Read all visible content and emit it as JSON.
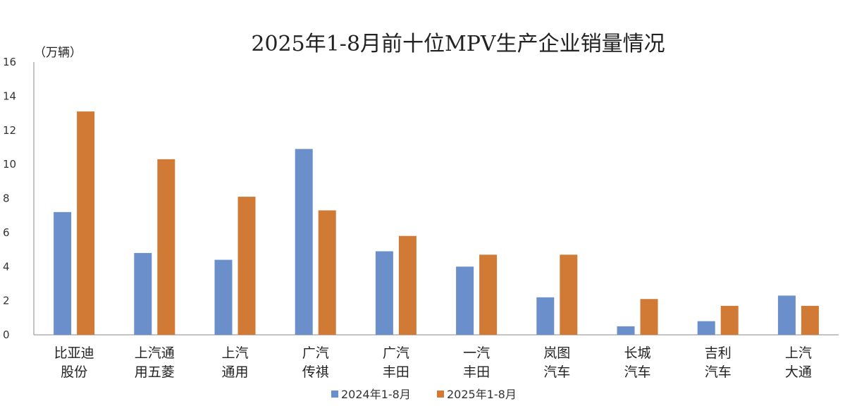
{
  "chart_data": {
    "type": "bar",
    "title": "2025年1-8月前十位MPV生产企业销量情况",
    "ylabel": "（万辆）",
    "xlabel": "",
    "ylim": [
      0,
      16
    ],
    "yticks": [
      0,
      2,
      4,
      6,
      8,
      10,
      12,
      14,
      16
    ],
    "grid": false,
    "legend_position": "bottom",
    "categories": [
      [
        "比亚迪",
        "股份"
      ],
      [
        "上汽通",
        "用五菱"
      ],
      [
        "上汽",
        "通用"
      ],
      [
        "广汽",
        "传祺"
      ],
      [
        "广汽",
        "丰田"
      ],
      [
        "一汽",
        "丰田"
      ],
      [
        "岚图",
        "汽车"
      ],
      [
        "长城",
        "汽车"
      ],
      [
        "吉利",
        "汽车"
      ],
      [
        "上汽",
        "大通"
      ]
    ],
    "series": [
      {
        "name": "2024年1-8月",
        "color": "#6a8fcb",
        "values": [
          7.2,
          4.8,
          4.4,
          10.9,
          4.9,
          4.0,
          2.2,
          0.5,
          0.8,
          2.3
        ]
      },
      {
        "name": "2025年1-8月",
        "color": "#d17a36",
        "values": [
          13.1,
          10.3,
          8.1,
          7.3,
          5.8,
          4.7,
          4.7,
          2.1,
          1.7,
          1.7
        ]
      }
    ]
  }
}
